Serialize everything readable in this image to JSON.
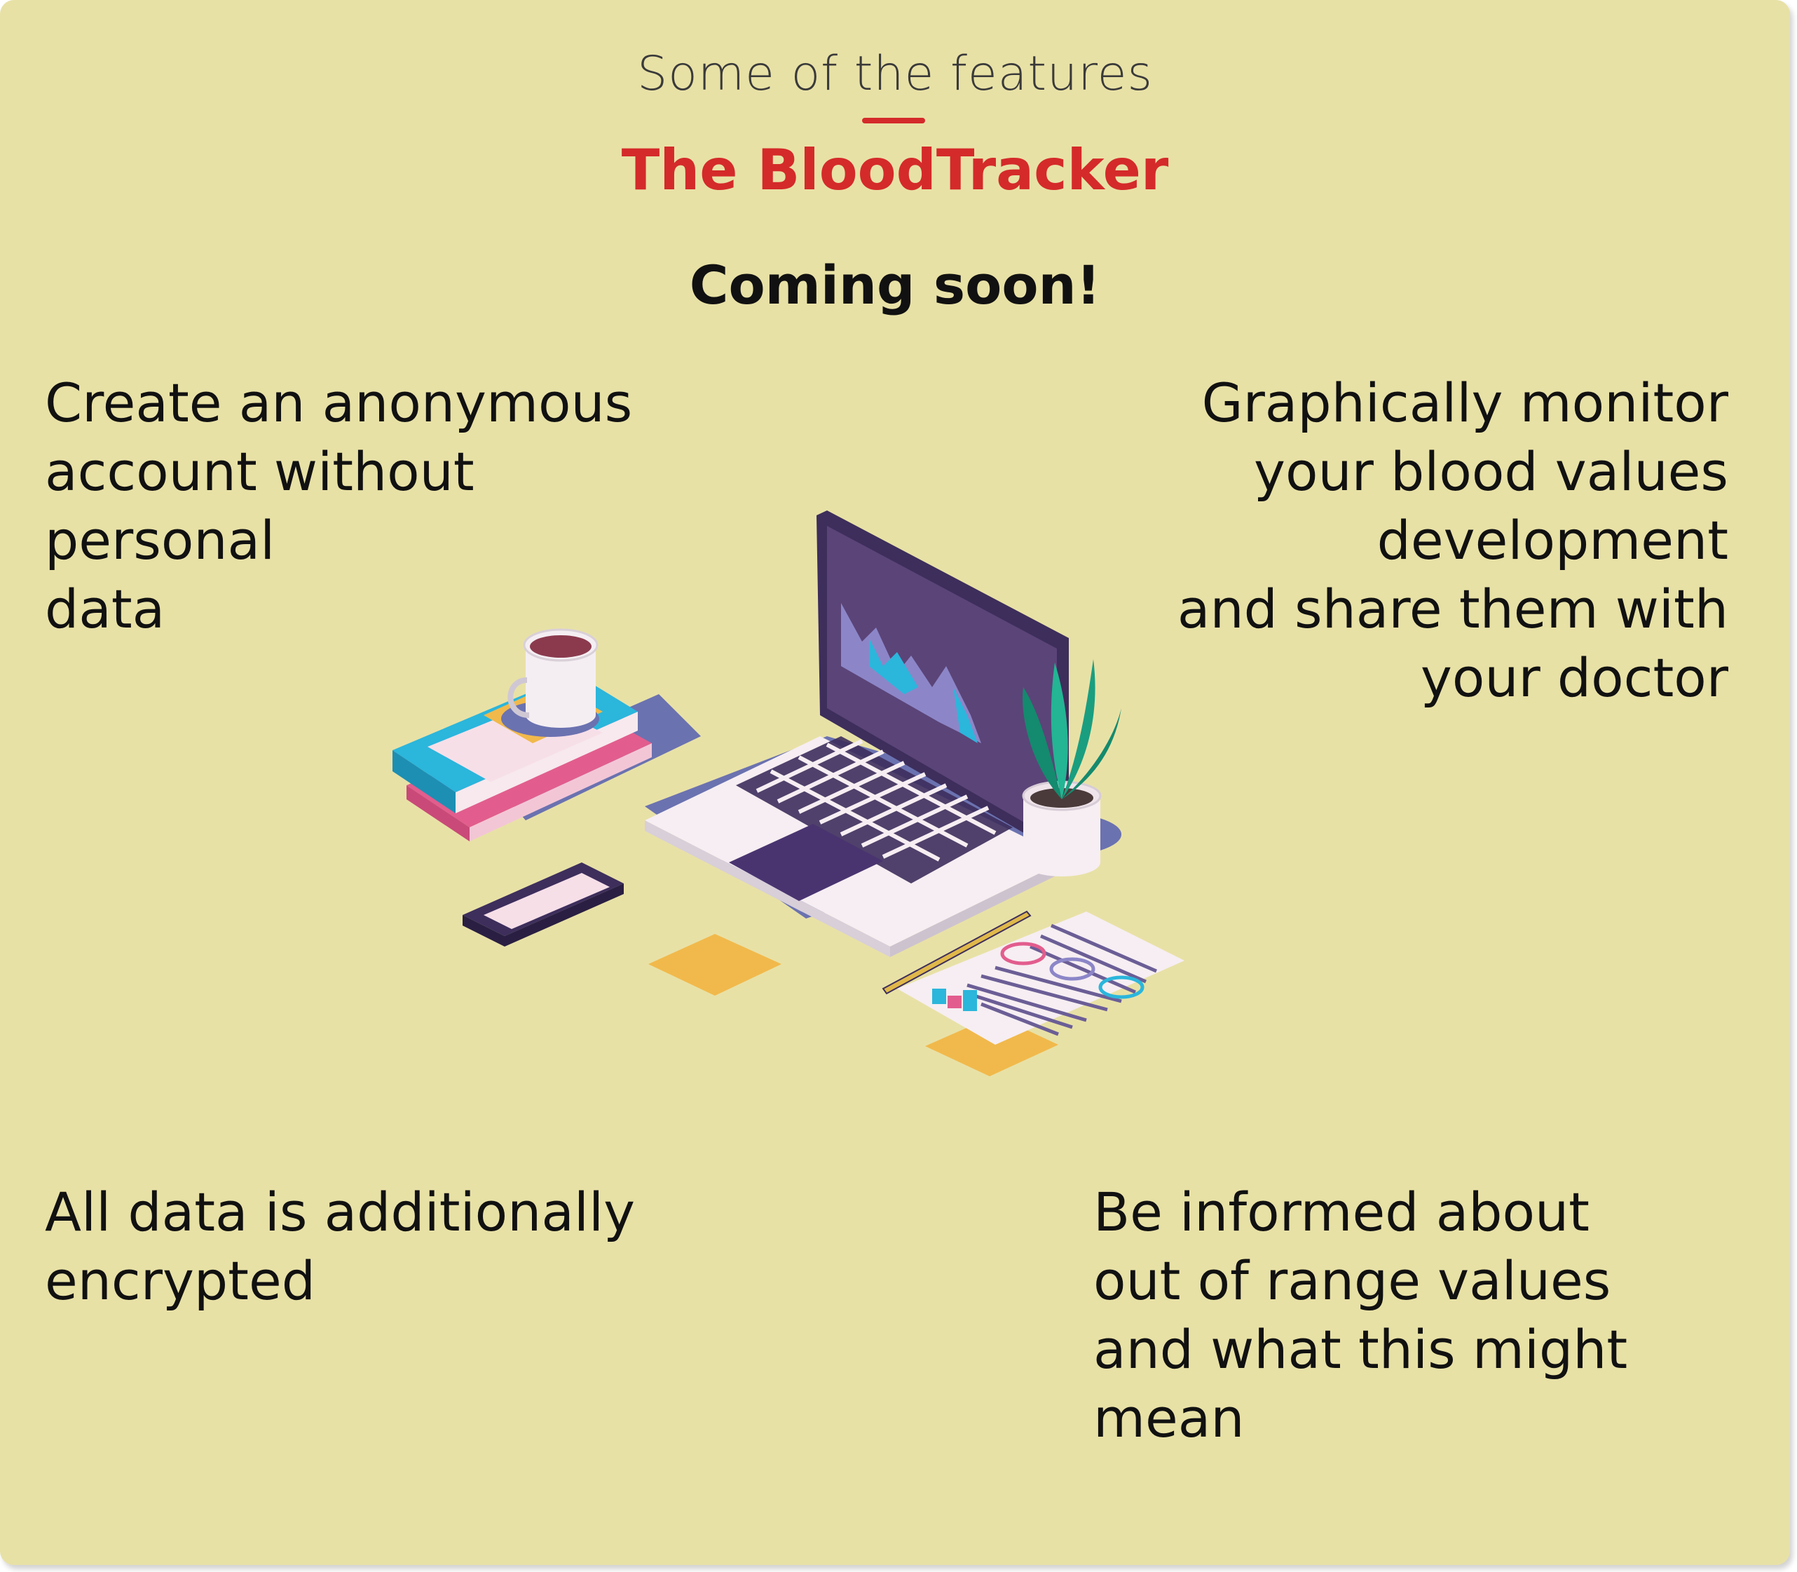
{
  "header": {
    "subtitle": "Some of the features",
    "brand": "The BloodTracker",
    "announcement": "Coming soon!"
  },
  "features": [
    {
      "text": "Create an anonymous\naccount without\npersonal\ndata"
    },
    {
      "text": "Graphically monitor\nyour blood values\ndevelopment\nand share them with\nyour doctor"
    },
    {
      "text": "All data is additionally\nencrypted"
    },
    {
      "text": "Be informed about\nout of range values\nand what this might\nmean"
    }
  ],
  "illustration": {
    "icon": "workspace-laptop-illustration"
  },
  "colors": {
    "background": "#e8e1a6",
    "brand": "#d42a2a",
    "text": "#111111",
    "laptop": "#3d2e5c",
    "shadow": "#6b72b0"
  }
}
